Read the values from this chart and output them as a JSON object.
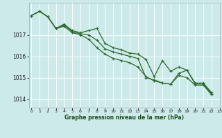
{
  "title": "Graphe pression niveau de la mer (hPa)",
  "bg_color": "#cceaea",
  "grid_color": "#ffffff",
  "line_color": "#2d6a2d",
  "xlim": [
    -0.3,
    23
  ],
  "ylim": [
    1013.6,
    1018.5
  ],
  "yticks": [
    1014,
    1015,
    1016,
    1017
  ],
  "xticks": [
    0,
    1,
    2,
    3,
    4,
    5,
    6,
    7,
    8,
    9,
    10,
    11,
    12,
    13,
    14,
    15,
    16,
    17,
    18,
    19,
    20,
    21,
    22,
    23
  ],
  "series": [
    {
      "x": [
        0,
        1,
        2,
        3,
        4,
        5,
        6,
        7,
        8,
        9,
        10,
        11,
        12,
        13,
        14,
        15,
        16,
        17,
        18,
        19,
        20,
        21,
        22
      ],
      "y": [
        1017.9,
        1018.1,
        1017.85,
        1017.3,
        1017.5,
        1017.2,
        1017.1,
        1017.2,
        1017.3,
        1016.6,
        1016.4,
        1016.3,
        1016.15,
        1016.1,
        1015.85,
        1015.05,
        1015.8,
        1015.3,
        1015.5,
        1015.35,
        1014.75,
        1014.75,
        1014.3
      ]
    },
    {
      "x": [
        0,
        1,
        2,
        3,
        4,
        5,
        6,
        7,
        8,
        9,
        10,
        11,
        12,
        13,
        14,
        15,
        16,
        17,
        18,
        19,
        20,
        21,
        22
      ],
      "y": [
        1017.9,
        1018.1,
        1017.85,
        1017.3,
        1017.45,
        1017.15,
        1017.05,
        1017.0,
        1016.75,
        1016.35,
        1016.2,
        1016.1,
        1016.0,
        1015.9,
        1015.0,
        1014.9,
        1014.75,
        1014.7,
        1015.2,
        1015.35,
        1014.7,
        1014.7,
        1014.25
      ]
    },
    {
      "x": [
        0,
        1,
        2,
        3,
        4,
        5,
        6,
        7,
        8,
        9,
        10,
        11,
        12,
        13,
        14,
        15,
        16,
        17,
        18,
        19,
        20,
        21,
        22
      ],
      "y": [
        1017.9,
        1018.1,
        1017.85,
        1017.3,
        1017.4,
        1017.1,
        1017.0,
        1016.8,
        1016.4,
        1016.1,
        1015.9,
        1015.8,
        1015.7,
        1015.5,
        1015.05,
        1014.85,
        1014.75,
        1014.7,
        1015.1,
        1015.0,
        1014.65,
        1014.65,
        1014.2
      ]
    }
  ]
}
